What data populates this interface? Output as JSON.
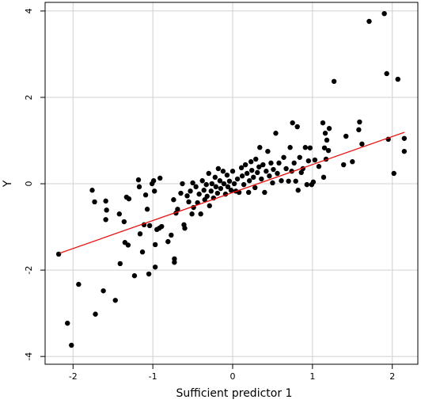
{
  "chart_data": {
    "type": "scatter",
    "xlabel": "Sufficient predictor  1",
    "ylabel": "Y",
    "xlim": [
      -2.35,
      2.32
    ],
    "ylim": [
      -4.18,
      4.2
    ],
    "xticks": [
      -2,
      -1,
      0,
      1,
      2
    ],
    "yticks": [
      -4,
      -2,
      0,
      2,
      4
    ],
    "grid": true,
    "series": [
      {
        "type": "scatter",
        "color": "#000000",
        "x": [
          -2.18,
          -2.07,
          -2.02,
          -1.93,
          -1.76,
          -1.73,
          -1.72,
          -1.62,
          -1.59,
          -1.58,
          -1.59,
          -1.47,
          -1.42,
          -1.41,
          -1.35,
          -1.33,
          -1.3,
          -1.36,
          -1.31,
          -1.23,
          -1.18,
          -1.17,
          -1.16,
          -1.13,
          -1.11,
          -1.09,
          -1.07,
          -1.05,
          -1.04,
          -1.01,
          -0.99,
          -0.98,
          -0.97,
          -0.97,
          -0.95,
          -0.92,
          -0.89,
          -0.91,
          -0.81,
          -0.77,
          -0.74,
          -0.73,
          -0.73,
          -0.71,
          -0.69,
          -0.65,
          -0.63,
          -0.61,
          -0.6,
          -0.57,
          -0.55,
          -0.53,
          -0.51,
          -0.5,
          -0.49,
          -0.46,
          -0.44,
          -0.42,
          -0.4,
          -0.38,
          -0.36,
          -0.35,
          -0.33,
          -0.32,
          -0.3,
          -0.29,
          -0.27,
          -0.26,
          -0.24,
          -0.22,
          -0.21,
          -0.19,
          -0.18,
          -0.16,
          -0.15,
          -0.12,
          -0.11,
          -0.09,
          -0.07,
          -0.06,
          -0.04,
          -0.02,
          0.0,
          0.02,
          0.04,
          0.06,
          0.08,
          0.11,
          0.12,
          0.14,
          0.16,
          0.18,
          0.2,
          0.21,
          0.23,
          0.24,
          0.26,
          0.28,
          0.29,
          0.31,
          0.33,
          0.34,
          0.36,
          0.38,
          0.4,
          0.42,
          0.44,
          0.46,
          0.48,
          0.5,
          0.51,
          0.54,
          0.56,
          0.58,
          0.61,
          0.64,
          0.67,
          0.7,
          0.72,
          0.74,
          0.75,
          0.77,
          0.79,
          0.81,
          0.82,
          0.84,
          0.86,
          0.88,
          0.91,
          0.93,
          0.95,
          0.97,
          0.99,
          1.01,
          1.03,
          1.08,
          1.13,
          1.14,
          1.15,
          1.16,
          1.17,
          1.18,
          1.2,
          1.21,
          1.27,
          1.39,
          1.42,
          1.5,
          1.58,
          1.59,
          1.62,
          1.71,
          1.9,
          1.93,
          1.95,
          2.02,
          2.07,
          2.15,
          2.15
        ],
        "values": [
          -1.63,
          -3.23,
          -3.74,
          -2.33,
          -0.15,
          -0.42,
          -3.02,
          -2.48,
          -0.4,
          -0.61,
          -0.83,
          -2.7,
          -0.7,
          -1.85,
          -1.36,
          -0.31,
          -0.35,
          -0.88,
          -1.42,
          -2.13,
          0.09,
          -0.07,
          -1.16,
          -1.58,
          -0.95,
          -0.26,
          -0.59,
          -2.09,
          -0.97,
          0.0,
          0.07,
          -0.17,
          -1.93,
          -1.41,
          -1.06,
          -1.03,
          -0.99,
          0.13,
          -1.34,
          -1.19,
          -0.37,
          -1.74,
          -1.82,
          -0.68,
          -0.59,
          -0.22,
          0.0,
          -0.95,
          -1.03,
          -0.28,
          -0.42,
          -0.17,
          -0.7,
          0.02,
          -0.55,
          -0.07,
          -0.44,
          -0.24,
          -0.7,
          0.07,
          -0.15,
          -0.37,
          -0.02,
          -0.29,
          0.24,
          -0.51,
          -0.17,
          0.0,
          -0.33,
          0.15,
          -0.07,
          -0.22,
          0.35,
          0.07,
          -0.11,
          0.29,
          0.0,
          -0.24,
          0.2,
          -0.07,
          0.06,
          -0.15,
          0.29,
          0.0,
          -0.17,
          0.11,
          -0.2,
          0.37,
          0.18,
          -0.02,
          0.44,
          0.24,
          -0.2,
          0.07,
          0.51,
          0.31,
          0.15,
          -0.09,
          0.57,
          0.26,
          0.39,
          0.84,
          0.11,
          0.44,
          -0.2,
          0.29,
          0.75,
          0.18,
          0.48,
          0.02,
          0.33,
          1.17,
          0.24,
          0.48,
          0.07,
          0.61,
          0.35,
          0.06,
          0.84,
          0.29,
          1.41,
          0.48,
          0.06,
          1.32,
          -0.15,
          0.61,
          0.26,
          0.35,
          0.84,
          -0.02,
          0.53,
          0.83,
          -0.02,
          0.04,
          0.55,
          0.4,
          1.41,
          0.15,
          0.83,
          1.17,
          0.57,
          1.01,
          0.77,
          1.28,
          2.37,
          0.44,
          1.1,
          0.51,
          1.25,
          1.43,
          0.92,
          3.76,
          3.94,
          2.55,
          1.03,
          0.24,
          2.42,
          0.75,
          1.05
        ]
      },
      {
        "type": "line",
        "color": "#ff0000",
        "x": [
          -2.17,
          2.15
        ],
        "values": [
          -1.61,
          1.19
        ]
      }
    ]
  }
}
